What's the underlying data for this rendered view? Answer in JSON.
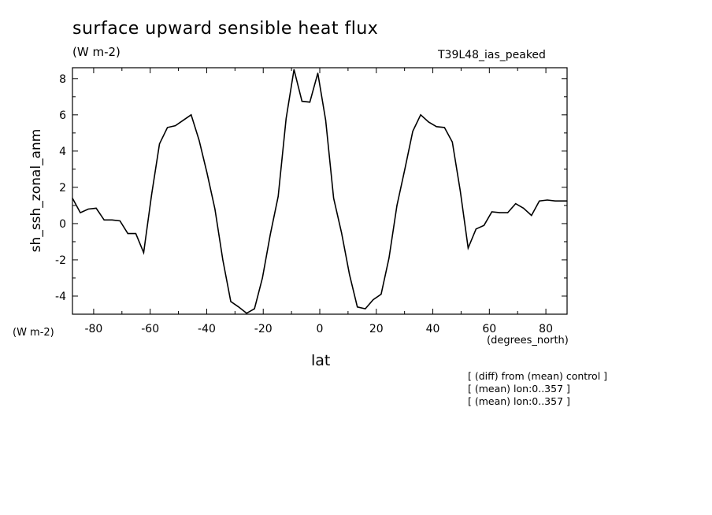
{
  "figure": {
    "title": "surface upward sensible heat flux",
    "units": "(W m-2)",
    "experiment": "T39L48_ias_peaked",
    "y_units": "(W m-2)",
    "x_units": "(degrees_north)",
    "notes": [
      "[ (diff) from (mean) control ]",
      "[ (mean) lon:0..357 ]",
      "[ (mean) lon:0..357 ]"
    ]
  },
  "chart_data": {
    "type": "line",
    "title": "surface upward sensible heat flux",
    "xlabel": "lat",
    "ylabel": "sh_ssh_zonal_anm",
    "xlim": [
      -87.5,
      87.5
    ],
    "ylim": [
      -5,
      8.6
    ],
    "x_ticks": [
      -80,
      -60,
      -40,
      -20,
      0,
      20,
      40,
      60,
      80
    ],
    "y_ticks": [
      -4,
      -2,
      0,
      2,
      4,
      6,
      8
    ],
    "grid": false,
    "series": [
      {
        "color": "#000000",
        "x": [
          -87.5,
          -84.7,
          -81.9,
          -79.1,
          -76.3,
          -73.5,
          -70.7,
          -67.9,
          -65.1,
          -62.3,
          -59.5,
          -56.7,
          -53.9,
          -51.1,
          -48.3,
          -45.5,
          -42.7,
          -39.9,
          -37.1,
          -34.3,
          -31.5,
          -28.7,
          -25.9,
          -23.1,
          -20.3,
          -17.5,
          -14.7,
          -11.9,
          -9.1,
          -6.3,
          -3.5,
          -0.7,
          2.1,
          4.9,
          7.7,
          10.5,
          13.3,
          16.1,
          18.9,
          21.7,
          24.5,
          27.3,
          30.1,
          32.9,
          35.7,
          38.5,
          41.3,
          44.1,
          46.9,
          49.7,
          52.5,
          55.3,
          58.1,
          60.9,
          63.7,
          66.5,
          69.3,
          72.1,
          74.9,
          77.7,
          80.5,
          83.3,
          86.1,
          87.5
        ],
        "y": [
          1.4,
          0.6,
          0.8,
          0.85,
          0.2,
          0.2,
          0.15,
          -0.55,
          -0.55,
          -1.6,
          1.6,
          4.4,
          5.3,
          5.4,
          5.7,
          6.0,
          4.6,
          2.8,
          0.8,
          -2.0,
          -4.3,
          -4.6,
          -4.95,
          -4.7,
          -3.0,
          -0.6,
          1.5,
          5.8,
          8.5,
          6.75,
          6.7,
          8.3,
          5.7,
          1.4,
          -0.5,
          -2.8,
          -4.6,
          -4.7,
          -4.2,
          -3.9,
          -1.9,
          1.0,
          3.0,
          5.1,
          6.0,
          5.6,
          5.35,
          5.3,
          4.5,
          1.8,
          -1.35,
          -0.3,
          -0.1,
          0.65,
          0.6,
          0.6,
          1.1,
          0.85,
          0.45,
          1.25,
          1.3,
          1.25,
          1.25,
          1.25
        ]
      }
    ]
  }
}
